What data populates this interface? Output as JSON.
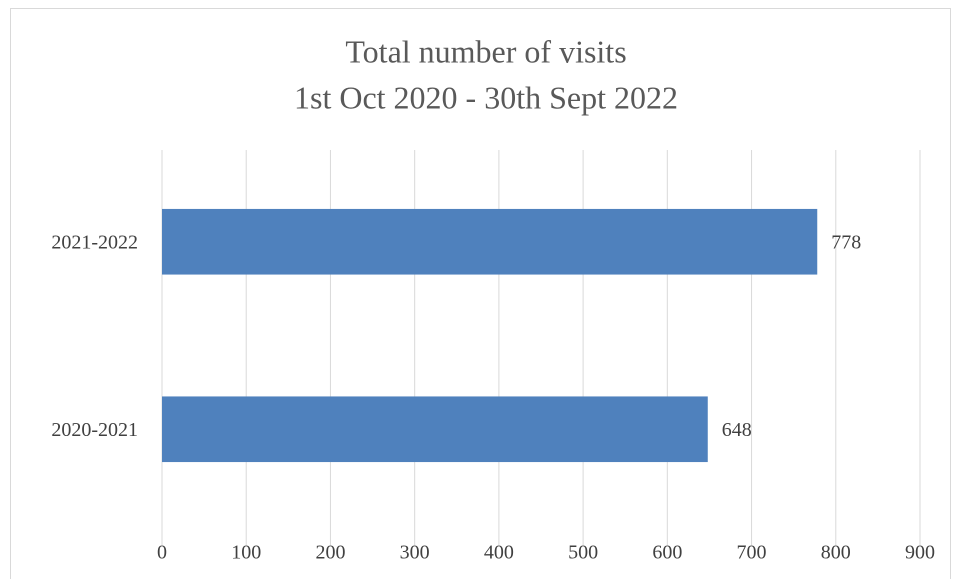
{
  "chart_data": {
    "type": "bar",
    "orientation": "horizontal",
    "title": [
      "Total number of visits",
      "1st Oct 2020 - 30th Sept 2022"
    ],
    "categories": [
      "2020-2021",
      "2021-2022"
    ],
    "values": [
      648,
      778
    ],
    "color": "#4f81bd",
    "xlim": [
      0,
      900
    ],
    "xticks": [
      0,
      100,
      200,
      300,
      400,
      500,
      600,
      700,
      800,
      900
    ],
    "grid": true
  }
}
